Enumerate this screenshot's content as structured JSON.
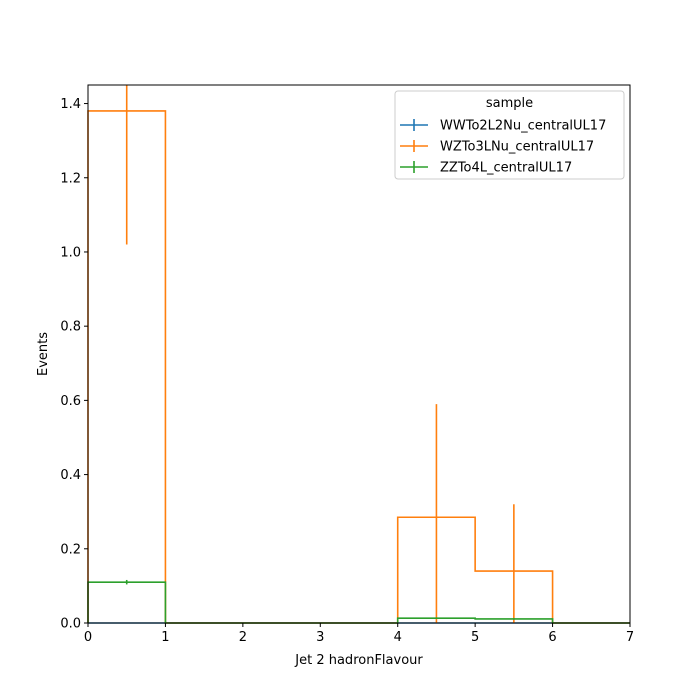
{
  "chart_data": {
    "type": "histogram-step",
    "xlabel": "Jet 2 hadronFlavour",
    "ylabel": "Events",
    "xlim": [
      0,
      7
    ],
    "ylim": [
      0,
      1.45
    ],
    "xticks": [
      "0",
      "1",
      "2",
      "3",
      "4",
      "5",
      "6",
      "7"
    ],
    "yticks": [
      "0.0",
      "0.2",
      "0.4",
      "0.6",
      "0.8",
      "1.0",
      "1.2",
      "1.4"
    ],
    "bin_edges": [
      0,
      1,
      2,
      3,
      4,
      5,
      6,
      7
    ],
    "grid": false,
    "legend": {
      "title": "sample",
      "placement": "upper-right"
    },
    "series": [
      {
        "name": "WWTo2L2Nu_centralUL17",
        "color": "#1f77b4",
        "values": [
          0,
          0,
          0,
          0,
          0,
          0,
          0
        ],
        "errors": [
          0,
          0,
          0,
          0,
          0,
          0,
          0
        ]
      },
      {
        "name": "WZTo3LNu_centralUL17",
        "color": "#ff7f0e",
        "values": [
          1.38,
          0,
          0,
          0,
          0.285,
          0.14,
          0
        ],
        "errors": [
          0.36,
          0,
          0,
          0,
          0.305,
          0.18,
          0
        ]
      },
      {
        "name": "ZZTo4L_centralUL17",
        "color": "#2ca02c",
        "values": [
          0.11,
          0,
          0,
          0,
          0.013,
          0.011,
          0
        ],
        "errors": [
          0.006,
          0,
          0,
          0,
          0.002,
          0.002,
          0
        ]
      }
    ]
  }
}
